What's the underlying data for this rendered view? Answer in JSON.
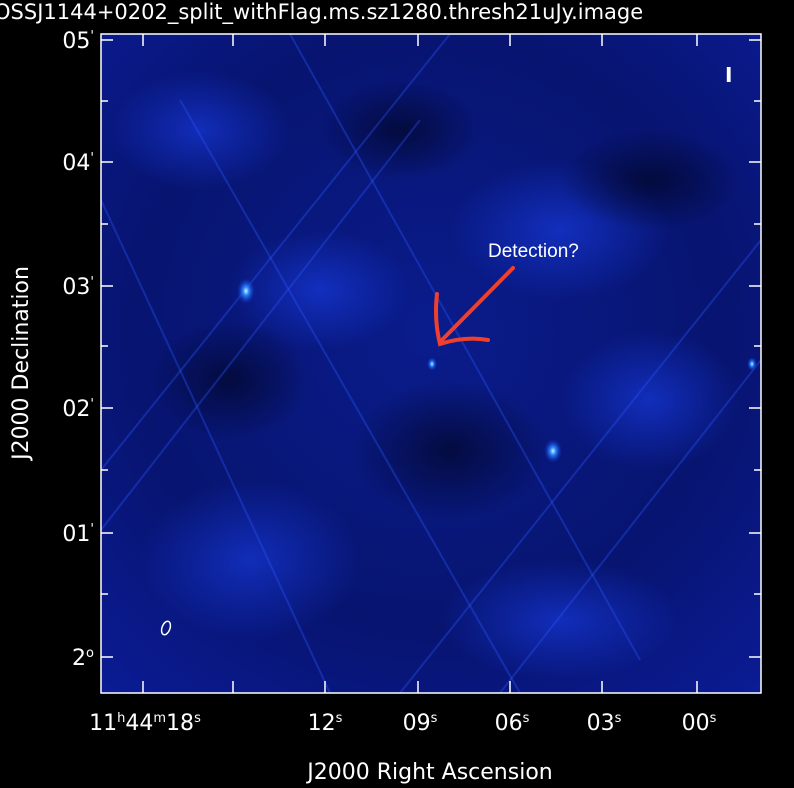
{
  "header": {
    "title": "OSSJ1144+0202_split_withFlag.ms.sz1280.thresh21uJy.image"
  },
  "stokes_label": "I",
  "annotation": "Detection?",
  "y_axis": {
    "label": "J2000 Declination",
    "ticks": [
      [
        "05",
        "'"
      ],
      [
        "04",
        "'"
      ],
      [
        "03",
        "'"
      ],
      [
        "02",
        "'"
      ],
      [
        "01",
        "'"
      ],
      [
        "2",
        "o"
      ]
    ]
  },
  "x_axis": {
    "label": "J2000 Right Ascension",
    "ticks": [
      [
        "11",
        "h",
        "44",
        "m",
        "18",
        "s"
      ],
      [
        "12",
        "s"
      ],
      [
        "09",
        "s"
      ],
      [
        "06",
        "s"
      ],
      [
        "03",
        "s"
      ],
      [
        "00",
        "s"
      ]
    ]
  }
}
